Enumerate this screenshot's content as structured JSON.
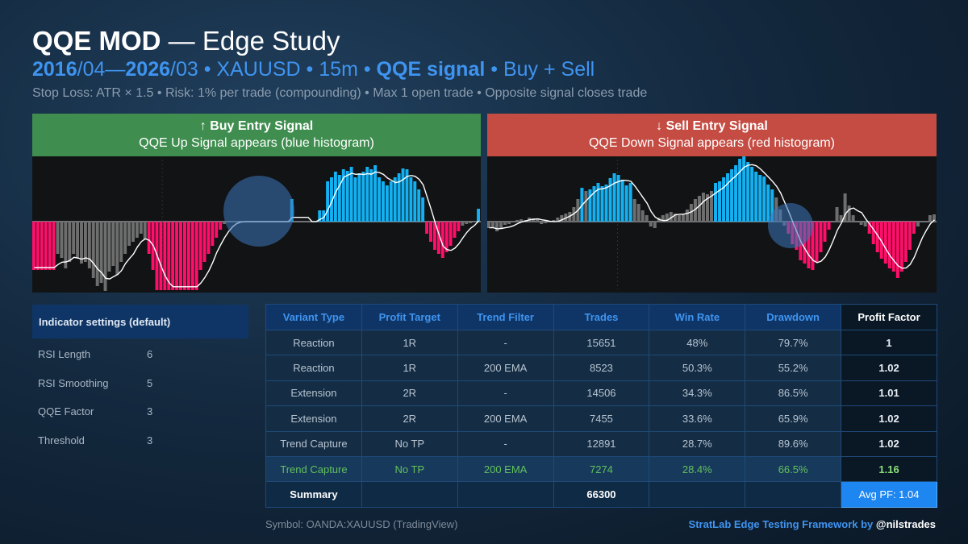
{
  "header": {
    "title_bold": "QQE MOD",
    "title_rest": " — Edge Study",
    "sub_years_a": "2016",
    "sub_years_b": "/04—",
    "sub_years_c": "2026",
    "sub_years_d": "/03",
    "sub_mid": " • XAUUSD • 15m • ",
    "sub_signal": "QQE signal",
    "sub_end": " • Buy + Sell",
    "desc": "Stop Loss: ATR × 1.5 • Risk: 1% per trade (compounding) • Max 1 open trade • Opposite signal closes trade"
  },
  "panels": {
    "buy": {
      "title": "↑ Buy Entry Signal",
      "subtitle": "QQE Up Signal appears (blue histogram)"
    },
    "sell": {
      "title": "↓ Sell Entry Signal",
      "subtitle": "QQE Down Signal appears (red histogram)"
    }
  },
  "colors": {
    "blue_bar": "#13b1f2",
    "red_bar": "#ff0f6a",
    "gray_bar": "#6e6e6e",
    "accent": "#3f94f0",
    "buy_header": "#3f8e4f",
    "sell_header": "#c44c43"
  },
  "settings": {
    "header": "Indicator settings (default)",
    "rows": [
      {
        "label": "RSI Length",
        "value": "6"
      },
      {
        "label": "RSI Smoothing",
        "value": "5"
      },
      {
        "label": "QQE Factor",
        "value": "3"
      },
      {
        "label": "Threshold",
        "value": "3"
      }
    ]
  },
  "table": {
    "headers": [
      "Variant Type",
      "Profit Target",
      "Trend Filter",
      "Trades",
      "Win Rate",
      "Drawdown",
      "Profit Factor"
    ],
    "rows": [
      [
        "Reaction",
        "1R",
        "-",
        "15651",
        "48%",
        "79.7%",
        "1"
      ],
      [
        "Reaction",
        "1R",
        "200 EMA",
        "8523",
        "50.3%",
        "55.2%",
        "1.02"
      ],
      [
        "Extension",
        "2R",
        "-",
        "14506",
        "34.3%",
        "86.5%",
        "1.01"
      ],
      [
        "Extension",
        "2R",
        "200 EMA",
        "7455",
        "33.6%",
        "65.9%",
        "1.02"
      ],
      [
        "Trend Capture",
        "No TP",
        "-",
        "12891",
        "28.7%",
        "89.6%",
        "1.02"
      ],
      [
        "Trend Capture",
        "No TP",
        "200 EMA",
        "7274",
        "28.4%",
        "66.5%",
        "1.16"
      ]
    ],
    "summary_label": "Summary",
    "summary_trades": "66300",
    "summary_pf": "Avg PF: 1.04"
  },
  "footer": {
    "symbol": "Symbol: OANDA:XAUUSD (TradingView)",
    "credit_text": "StratLab Edge Testing Framework by ",
    "credit_handle": "@nilstrades"
  },
  "buy_hist": [
    -60,
    -60,
    -60,
    -60,
    -60,
    -60,
    -40,
    -45,
    -58,
    -50,
    -40,
    -45,
    -52,
    -50,
    -58,
    -70,
    -80,
    -76,
    -86,
    -62,
    -55,
    -66,
    -50,
    -40,
    -30,
    -25,
    -20,
    -15,
    -22,
    -40,
    -60,
    -85,
    -85,
    -85,
    -85,
    -85,
    -85,
    -85,
    -85,
    -85,
    -85,
    -85,
    -60,
    -50,
    -40,
    -30,
    -20,
    -10,
    -3,
    0,
    0,
    0,
    0,
    0,
    0,
    0,
    0,
    0,
    0,
    0,
    0,
    0,
    0,
    0,
    0,
    28,
    0,
    0,
    0,
    0,
    0,
    0,
    14,
    14,
    50,
    55,
    62,
    58,
    65,
    63,
    68,
    55,
    60,
    62,
    68,
    65,
    70,
    55,
    50,
    45,
    50,
    55,
    60,
    66,
    65,
    55,
    50,
    40,
    30,
    -15,
    -25,
    -35,
    -40,
    -45,
    -38,
    -30,
    -20,
    -12,
    -5,
    -3,
    -2,
    -1,
    16
  ],
  "sell_hist": [
    -8,
    -8,
    -12,
    -8,
    -4,
    -3,
    0,
    2,
    3,
    2,
    5,
    4,
    4,
    -3,
    -2,
    -1,
    2,
    5,
    8,
    10,
    12,
    18,
    28,
    42,
    38,
    40,
    44,
    48,
    44,
    46,
    54,
    60,
    58,
    52,
    45,
    48,
    28,
    22,
    14,
    8,
    -6,
    -8,
    5,
    8,
    10,
    12,
    10,
    8,
    9,
    15,
    22,
    28,
    32,
    36,
    34,
    38,
    48,
    50,
    55,
    60,
    65,
    70,
    78,
    82,
    74,
    68,
    62,
    58,
    56,
    46,
    40,
    30,
    15,
    -5,
    -15,
    -28,
    -35,
    -48,
    -52,
    -58,
    -60,
    -50,
    -38,
    -25,
    -10,
    0,
    18,
    8,
    35,
    20,
    8,
    0,
    -4,
    -6,
    -15,
    -28,
    -38,
    -46,
    -52,
    -58,
    -62,
    -70,
    -62,
    -50,
    -35,
    -15,
    -6,
    0,
    0,
    8,
    9
  ]
}
